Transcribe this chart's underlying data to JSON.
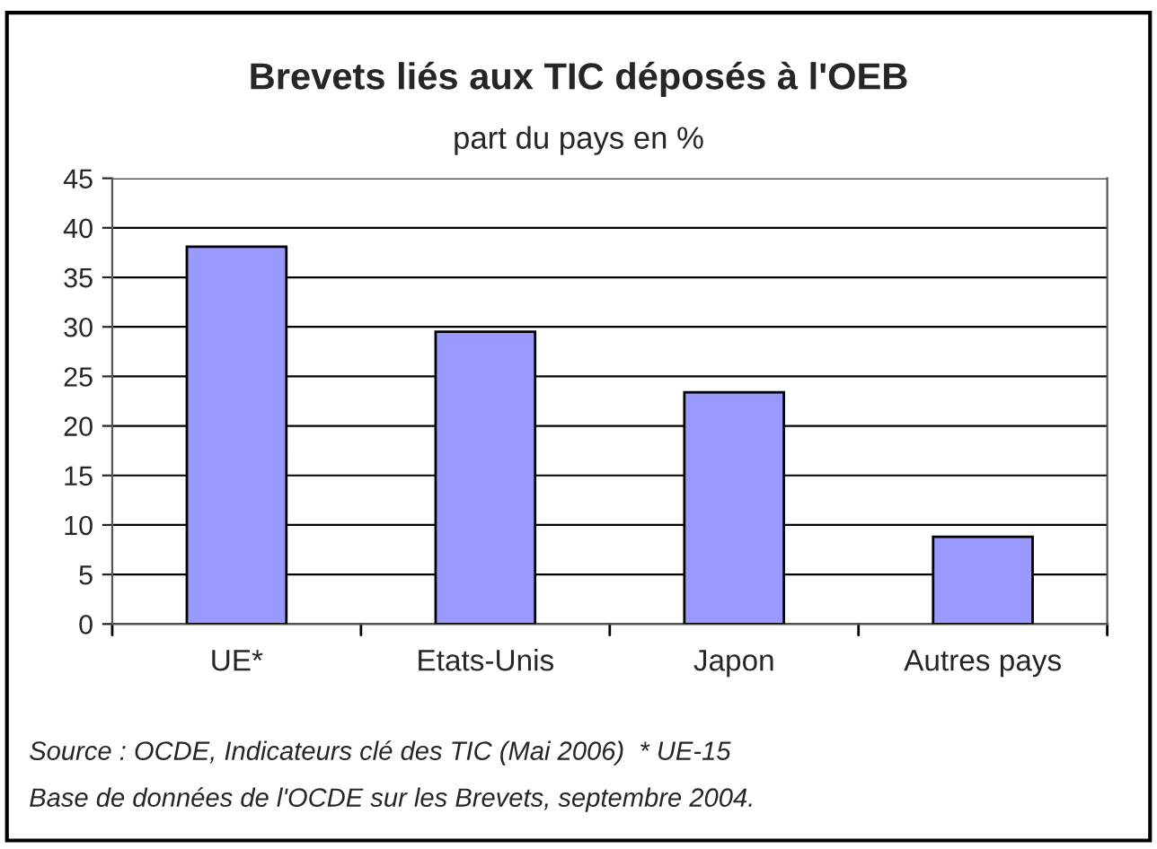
{
  "chart_data": {
    "type": "bar",
    "title": "Brevets liés aux TIC déposés à l'OEB",
    "subtitle": "part du pays en %",
    "categories": [
      "UE*",
      "Etats-Unis",
      "Japon",
      "Autres pays"
    ],
    "values": [
      38.1,
      29.5,
      23.4,
      8.8
    ],
    "color": "#9999ff",
    "ylim": [
      0,
      45
    ],
    "yticks": [
      0,
      5,
      10,
      15,
      20,
      25,
      30,
      35,
      40,
      45
    ],
    "grid": "y",
    "annotations": [
      "Source : OCDE, Indicateurs clé des TIC (Mai 2006)  * UE-15",
      "Base de données de l'OCDE sur les Brevets, septembre 2004."
    ]
  }
}
